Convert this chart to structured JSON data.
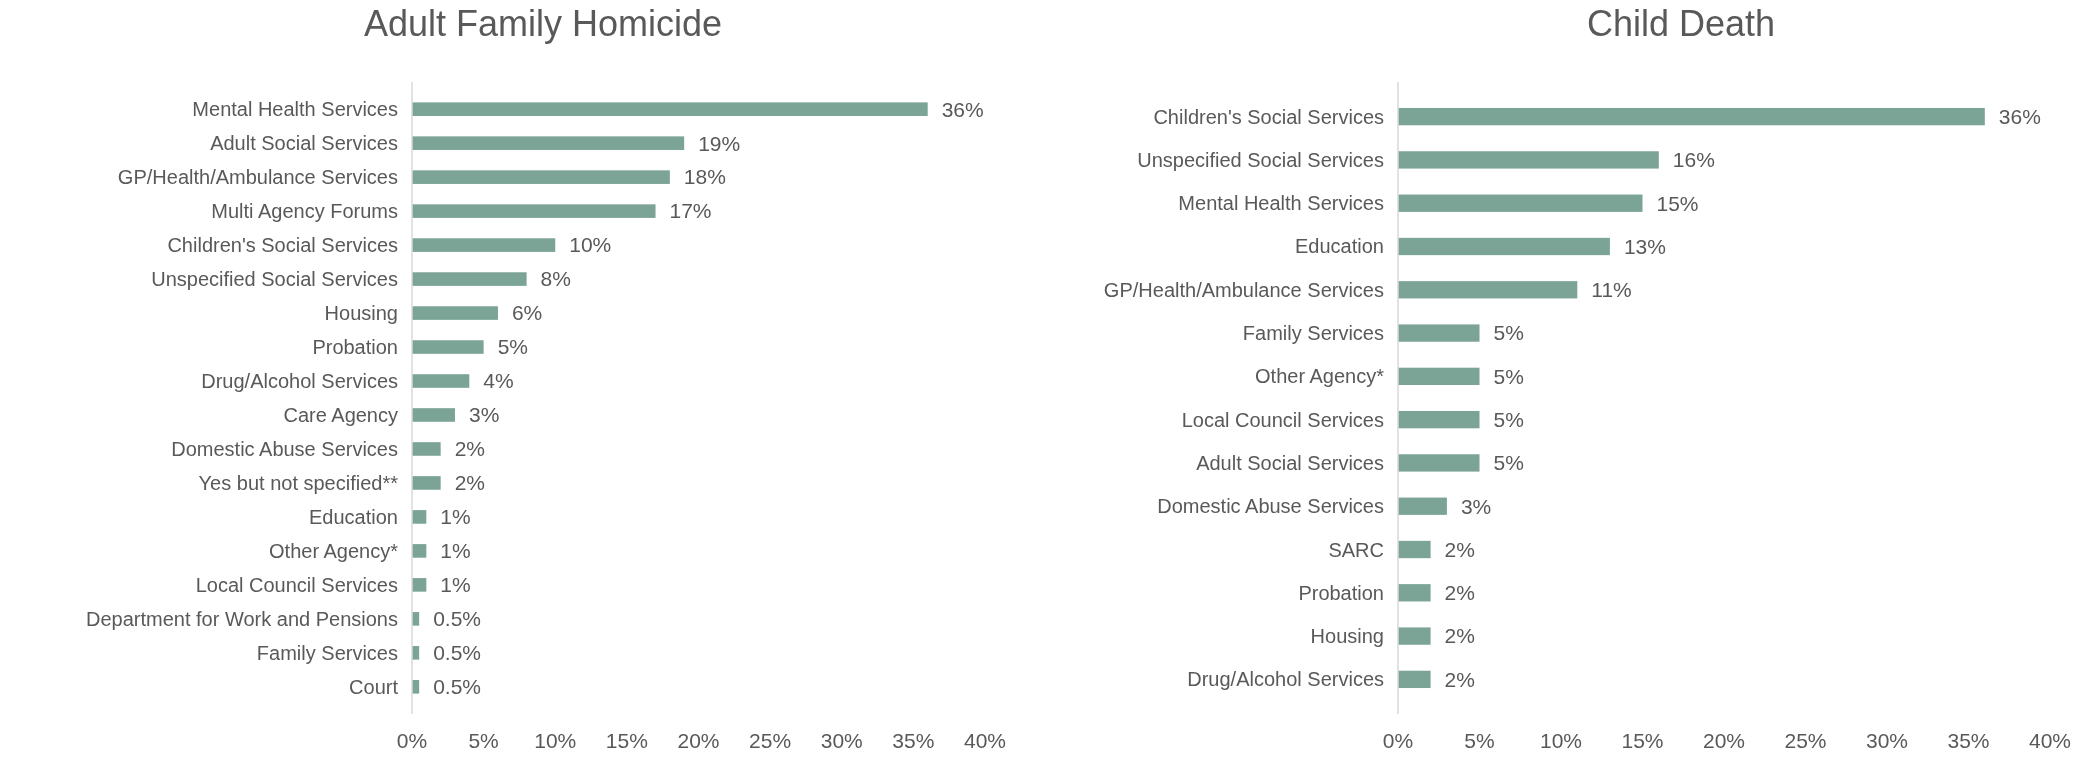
{
  "chart_data": [
    {
      "type": "bar",
      "orientation": "horizontal",
      "title": "Adult Family Homicide",
      "categories": [
        "Mental Health Services",
        "Adult Social Services",
        "GP/Health/Ambulance Services",
        "Multi Agency Forums",
        "Children's Social Services",
        "Unspecified Social Services",
        "Housing",
        "Probation",
        "Drug/Alcohol Services",
        "Care Agency",
        "Domestic Abuse Services",
        "Yes but not specified**",
        "Education",
        "Other Agency*",
        "Local Council Services",
        "Department for Work and Pensions",
        "Family Services",
        "Court"
      ],
      "values": [
        36,
        19,
        18,
        17,
        10,
        8,
        6,
        5,
        4,
        3,
        2,
        2,
        1,
        1,
        1,
        0.5,
        0.5,
        0.5
      ],
      "value_labels": [
        "36%",
        "19%",
        "18%",
        "17%",
        "10%",
        "8%",
        "6%",
        "5%",
        "4%",
        "3%",
        "2%",
        "2%",
        "1%",
        "1%",
        "1%",
        "0.5%",
        "0.5%",
        "0.5%"
      ],
      "color": "#7ba396",
      "xlim": [
        0,
        40
      ],
      "xticks": [
        {
          "value": 0,
          "label": "0%"
        },
        {
          "value": 5,
          "label": "5%"
        },
        {
          "value": 10,
          "label": "10%"
        },
        {
          "value": 15,
          "label": "15%"
        },
        {
          "value": 20,
          "label": "20%"
        },
        {
          "value": 25,
          "label": "25%"
        },
        {
          "value": 30,
          "label": "30%"
        },
        {
          "value": 35,
          "label": "35%"
        },
        {
          "value": 40,
          "label": "40%"
        }
      ],
      "grid": false
    },
    {
      "type": "bar",
      "orientation": "horizontal",
      "title": "Child Death",
      "categories": [
        "Children's Social Services",
        "Unspecified Social Services",
        "Mental Health Services",
        "Education",
        "GP/Health/Ambulance Services",
        "Family Services",
        "Other Agency*",
        "Local Council Services",
        "Adult Social Services",
        "Domestic Abuse Services",
        "SARC",
        "Probation",
        "Housing",
        "Drug/Alcohol Services"
      ],
      "values": [
        36,
        16,
        15,
        13,
        11,
        5,
        5,
        5,
        5,
        3,
        2,
        2,
        2,
        2
      ],
      "value_labels": [
        "36%",
        "16%",
        "15%",
        "13%",
        "11%",
        "5%",
        "5%",
        "5%",
        "5%",
        "3%",
        "2%",
        "2%",
        "2%",
        "2%"
      ],
      "color": "#7ba396",
      "xlim": [
        0,
        40
      ],
      "xticks": [
        {
          "value": 0,
          "label": "0%"
        },
        {
          "value": 5,
          "label": "5%"
        },
        {
          "value": 10,
          "label": "10%"
        },
        {
          "value": 15,
          "label": "15%"
        },
        {
          "value": 20,
          "label": "20%"
        },
        {
          "value": 25,
          "label": "25%"
        },
        {
          "value": 30,
          "label": "30%"
        },
        {
          "value": 35,
          "label": "35%"
        },
        {
          "value": 40,
          "label": "40%"
        }
      ],
      "grid": false
    }
  ]
}
